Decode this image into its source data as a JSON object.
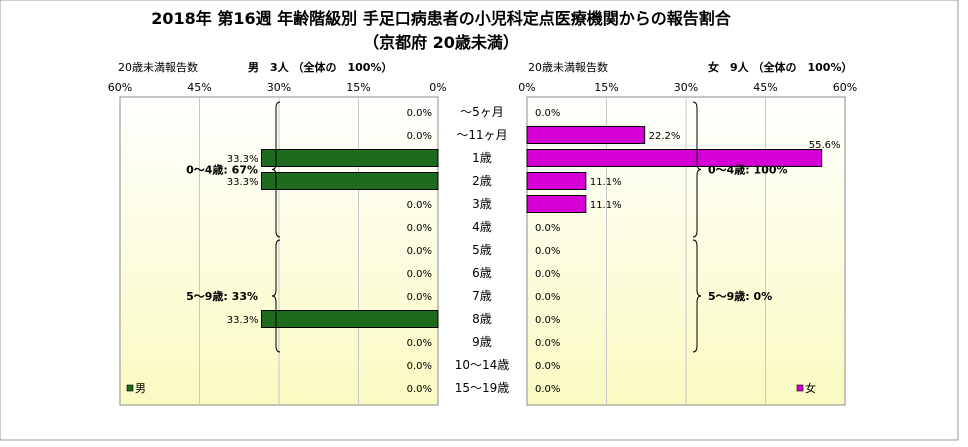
{
  "title": "2018年 第16週 年齢階級別 手足口病患者の小児科定点医療機関からの報告割合",
  "subtitle": "（京都府 20歳未満）",
  "colors": {
    "male": "#1e6b1e",
    "female": "#d400d4"
  },
  "chart_data": {
    "type": "bar",
    "categories": [
      "～5ヶ月",
      "～11ヶ月",
      "1歳",
      "2歳",
      "3歳",
      "4歳",
      "5歳",
      "6歳",
      "7歳",
      "8歳",
      "9歳",
      "10～14歳",
      "15～19歳"
    ],
    "xlim": [
      0,
      60
    ],
    "ticks": [
      60,
      45,
      30,
      15,
      0
    ],
    "tick_labels": [
      "60%",
      "45%",
      "30%",
      "15%",
      "0%"
    ],
    "right_ticks": [
      0,
      15,
      30,
      45,
      60
    ],
    "right_tick_labels": [
      "0%",
      "15%",
      "30%",
      "45%",
      "60%"
    ],
    "series": [
      {
        "name": "男",
        "values": [
          0.0,
          0.0,
          33.3,
          33.3,
          0.0,
          0.0,
          0.0,
          0.0,
          0.0,
          33.3,
          0.0,
          0.0,
          0.0
        ],
        "value_labels": [
          "0.0%",
          "0.0%",
          "33.3%",
          "33.3%",
          "0.0%",
          "0.0%",
          "0.0%",
          "0.0%",
          "0.0%",
          "33.3%",
          "0.0%",
          "0.0%",
          "0.0%"
        ],
        "header_left": "20歳未満報告数",
        "header_right": "男　3人 （全体の　100%）",
        "groups": [
          {
            "label": "0～4歳: 67%",
            "from": 0,
            "to": 5
          },
          {
            "label": "5～9歳: 33%",
            "from": 6,
            "to": 10
          }
        ]
      },
      {
        "name": "女",
        "values": [
          0.0,
          22.2,
          55.6,
          11.1,
          11.1,
          0.0,
          0.0,
          0.0,
          0.0,
          0.0,
          0.0,
          0.0,
          0.0
        ],
        "value_labels": [
          "0.0%",
          "22.2%",
          "55.6%",
          "11.1%",
          "11.1%",
          "0.0%",
          "0.0%",
          "0.0%",
          "0.0%",
          "0.0%",
          "0.0%",
          "0.0%",
          "0.0%"
        ],
        "header_left": "20歳未満報告数",
        "header_right": "女　9人 （全体の　100%）",
        "groups": [
          {
            "label": "0～4歳: 100%",
            "from": 0,
            "to": 5
          },
          {
            "label": "5～9歳: 0%",
            "from": 6,
            "to": 10
          }
        ]
      }
    ],
    "grid": true,
    "legend": [
      "bottom-left",
      "bottom-right"
    ]
  }
}
